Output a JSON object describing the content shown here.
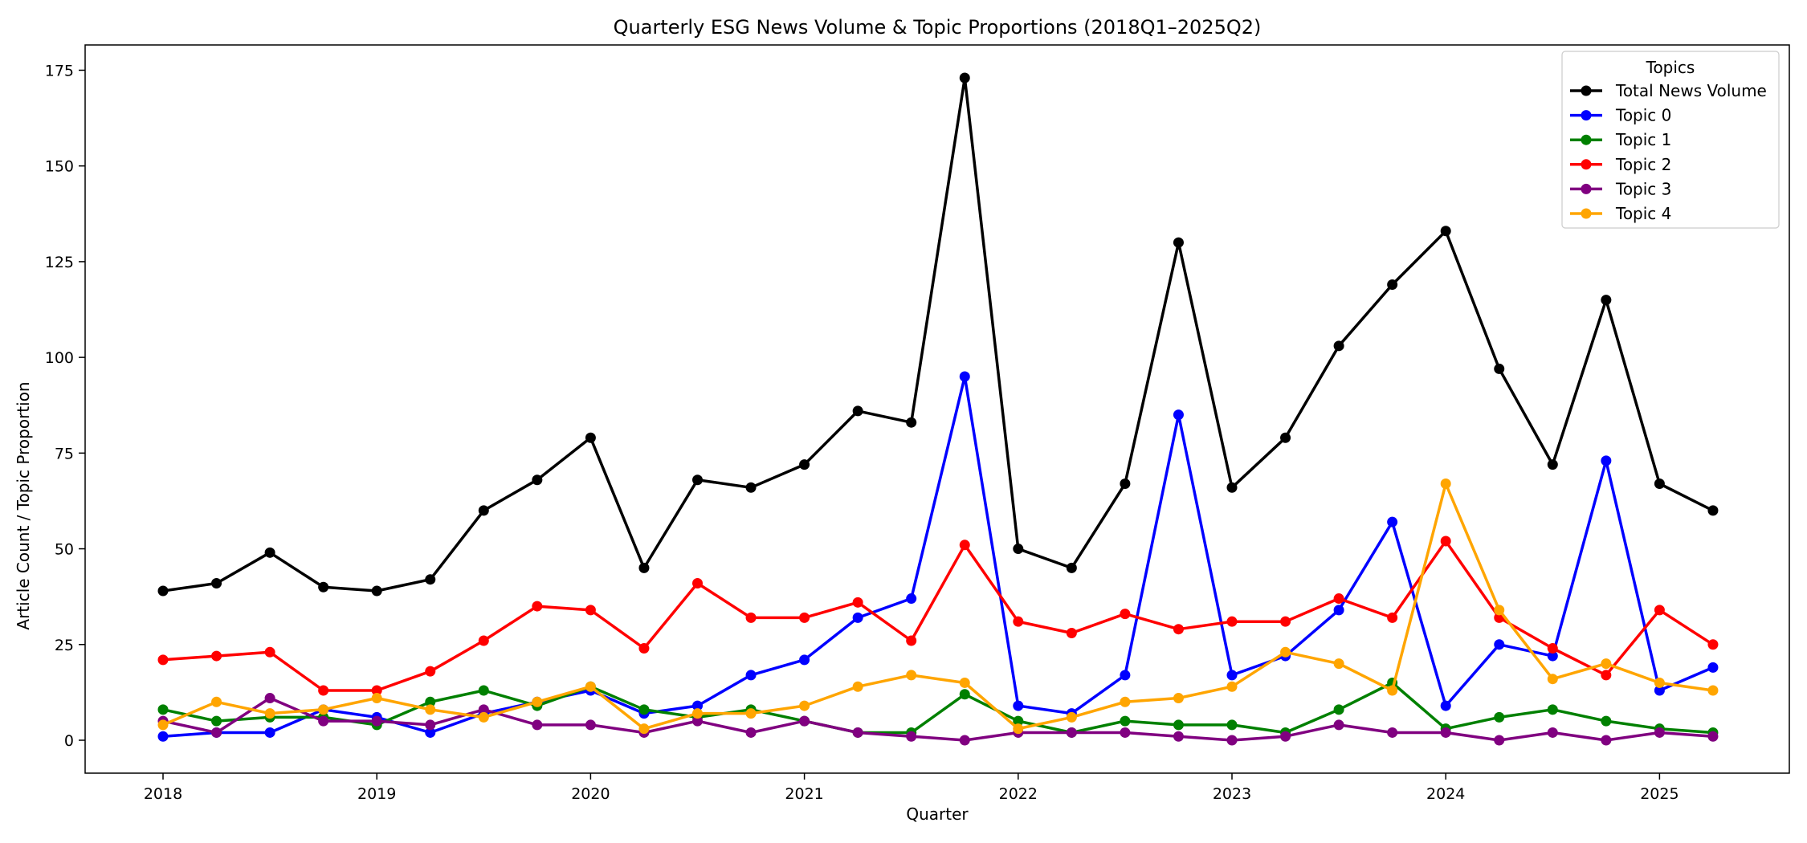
{
  "chart_data": {
    "type": "line",
    "title": "Quarterly ESG News Volume & Topic Proportions (2018Q1–2025Q2)",
    "xlabel": "Quarter",
    "ylabel": "Article Count / Topic Proportion",
    "x": [
      "2018Q1",
      "2018Q2",
      "2018Q3",
      "2018Q4",
      "2019Q1",
      "2019Q2",
      "2019Q3",
      "2019Q4",
      "2020Q1",
      "2020Q2",
      "2020Q3",
      "2020Q4",
      "2021Q1",
      "2021Q2",
      "2021Q3",
      "2021Q4",
      "2022Q1",
      "2022Q2",
      "2022Q3",
      "2022Q4",
      "2023Q1",
      "2023Q2",
      "2023Q3",
      "2023Q4",
      "2024Q1",
      "2024Q2",
      "2024Q3",
      "2024Q4",
      "2025Q1",
      "2025Q2"
    ],
    "x_ticks": [
      "2018",
      "2019",
      "2020",
      "2021",
      "2022",
      "2023",
      "2024",
      "2025"
    ],
    "y_ticks": [
      0,
      25,
      50,
      75,
      100,
      125,
      150,
      175
    ],
    "ylim": [
      -8.6,
      181.6
    ],
    "grid": false,
    "legend": {
      "title": "Topics",
      "placement": "top-right"
    },
    "series": [
      {
        "name": "Total News Volume",
        "color": "#000000",
        "values": [
          39,
          41,
          49,
          40,
          39,
          42,
          60,
          68,
          79,
          45,
          68,
          66,
          72,
          86,
          83,
          173,
          50,
          45,
          67,
          130,
          66,
          79,
          103,
          119,
          133,
          97,
          72,
          115,
          67,
          60
        ]
      },
      {
        "name": "Topic 0",
        "color": "#0000ff",
        "values": [
          1,
          2,
          2,
          8,
          6,
          2,
          7,
          10,
          13,
          7,
          9,
          17,
          21,
          32,
          37,
          95,
          9,
          7,
          17,
          85,
          17,
          22,
          34,
          57,
          9,
          25,
          22,
          73,
          13,
          19
        ]
      },
      {
        "name": "Topic 1",
        "color": "#008000",
        "values": [
          8,
          5,
          6,
          6,
          4,
          10,
          13,
          9,
          14,
          8,
          6,
          8,
          5,
          2,
          2,
          12,
          5,
          2,
          5,
          4,
          4,
          2,
          8,
          15,
          3,
          6,
          8,
          5,
          3,
          2
        ]
      },
      {
        "name": "Topic 2",
        "color": "#ff0000",
        "values": [
          21,
          22,
          23,
          13,
          13,
          18,
          26,
          35,
          34,
          24,
          41,
          32,
          32,
          36,
          26,
          51,
          31,
          28,
          33,
          29,
          31,
          31,
          37,
          32,
          52,
          32,
          24,
          17,
          34,
          25
        ]
      },
      {
        "name": "Topic 3",
        "color": "#800080",
        "values": [
          5,
          2,
          11,
          5,
          5,
          4,
          8,
          4,
          4,
          2,
          5,
          2,
          5,
          2,
          1,
          0,
          2,
          2,
          2,
          1,
          0,
          1,
          4,
          2,
          2,
          0,
          2,
          0,
          2,
          1
        ]
      },
      {
        "name": "Topic 4",
        "color": "#ffa500",
        "values": [
          4,
          10,
          7,
          8,
          11,
          8,
          6,
          10,
          14,
          3,
          7,
          7,
          9,
          14,
          17,
          15,
          3,
          6,
          10,
          11,
          14,
          23,
          20,
          13,
          67,
          34,
          16,
          20,
          15,
          13
        ]
      }
    ]
  }
}
